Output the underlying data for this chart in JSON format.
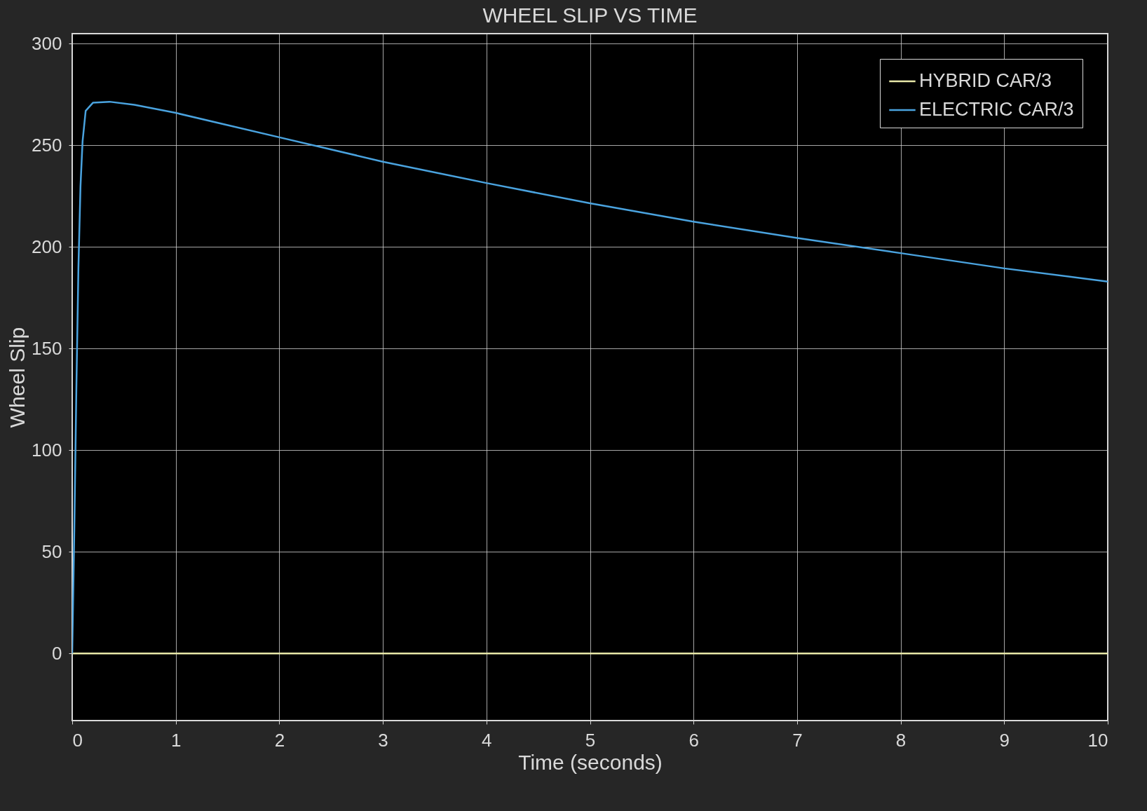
{
  "chart_data": {
    "type": "line",
    "title": "WHEEL SLIP VS TIME",
    "xlabel": "Time (seconds)",
    "ylabel": "Wheel Slip",
    "xlim": [
      0,
      10
    ],
    "ylim": [
      -33,
      305
    ],
    "xticks": [
      0,
      1,
      2,
      3,
      4,
      5,
      6,
      7,
      8,
      9,
      10
    ],
    "yticks": [
      0,
      50,
      100,
      150,
      200,
      250,
      300
    ],
    "grid": true,
    "legend": "top right",
    "line_style": "solid",
    "marker": "none",
    "series": [
      {
        "name": "HYBRID CAR/3",
        "color": "#e8e8a8",
        "x": [
          0,
          10
        ],
        "values": [
          0,
          0
        ]
      },
      {
        "name": "ELECTRIC CAR/3",
        "color": "#4aa3df",
        "x": [
          0,
          0.02,
          0.04,
          0.06,
          0.08,
          0.1,
          0.13,
          0.2,
          0.36,
          0.6,
          1,
          1.5,
          2,
          3,
          4,
          5,
          6,
          7,
          8,
          9,
          10
        ],
        "values": [
          0,
          60,
          130,
          190,
          230,
          252,
          267,
          271,
          271.5,
          270,
          266,
          260,
          254,
          242,
          231.5,
          221.5,
          212.5,
          204.5,
          197,
          189.5,
          183
        ]
      }
    ]
  }
}
